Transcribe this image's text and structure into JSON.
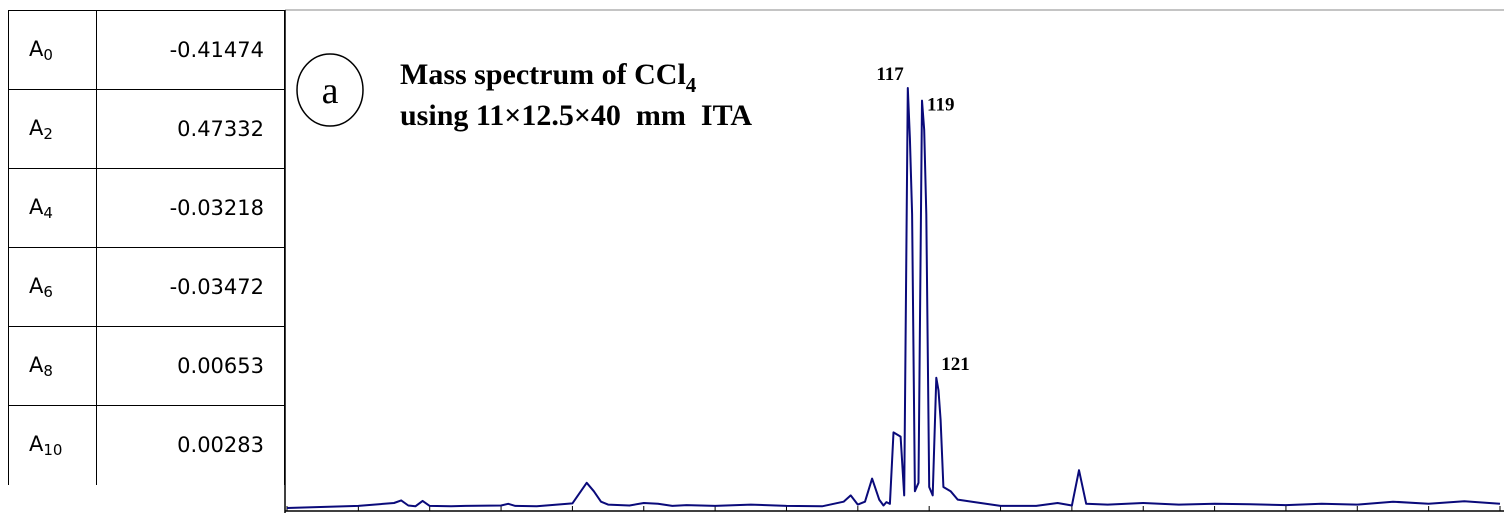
{
  "coefficients": [
    {
      "name": "A",
      "sub": "0",
      "value": "-0.41474"
    },
    {
      "name": "A",
      "sub": "2",
      "value": "0.47332"
    },
    {
      "name": "A",
      "sub": "4",
      "value": "-0.03218"
    },
    {
      "name": "A",
      "sub": "6",
      "value": "-0.03472"
    },
    {
      "name": "A",
      "sub": "8",
      "value": "0.00653"
    },
    {
      "name": "A",
      "sub": "10",
      "value": "0.00283"
    }
  ],
  "chart_data": {
    "type": "line",
    "panel_label": "a",
    "title_line1": "Mass spectrum of CCl",
    "title_line1_sub": "4",
    "title_line2": "using 11×12.5×40  mm  ITA",
    "xlabel": "",
    "ylabel": "",
    "xlim": [
      30,
      200
    ],
    "ylim": [
      0,
      100
    ],
    "grid": false,
    "line_color": "#0a0a7a",
    "peak_labels": [
      {
        "text": "117",
        "x": 117,
        "y": 100
      },
      {
        "text": "119",
        "x": 119,
        "y": 97
      },
      {
        "text": "121",
        "x": 121,
        "y": 31
      }
    ],
    "series": [
      {
        "x": [
          30,
          40,
          45,
          46,
          47,
          48,
          49,
          50,
          53,
          55,
          60,
          61,
          62,
          65,
          70,
          72,
          73,
          74,
          75,
          78,
          80,
          82,
          84,
          86,
          90,
          95,
          100,
          105,
          108,
          109,
          110,
          111,
          112,
          113,
          113.6,
          114,
          114.5,
          115,
          116,
          116.5,
          117,
          117.3,
          117.6,
          118,
          118.5,
          119,
          119.3,
          119.6,
          120,
          120.5,
          121,
          121.3,
          121.6,
          122,
          123,
          124,
          126,
          130,
          135,
          138,
          140,
          141,
          142,
          145,
          150,
          155,
          160,
          165,
          170,
          175,
          180,
          185,
          190,
          195,
          200
        ],
        "y": [
          0,
          0.5,
          1.2,
          1.8,
          0.6,
          0.4,
          1.7,
          0.5,
          0.4,
          0.5,
          0.6,
          1,
          0.5,
          0.4,
          1.1,
          6,
          4,
          1.5,
          0.8,
          0.6,
          1.2,
          1,
          0.5,
          0.7,
          0.5,
          0.8,
          0.5,
          0.4,
          1.5,
          3,
          0.8,
          1.5,
          7,
          2,
          0.6,
          1.4,
          1,
          18,
          17,
          3,
          100,
          88,
          70,
          4,
          6,
          97,
          90,
          70,
          5,
          3,
          31,
          28,
          21,
          5,
          4,
          2,
          1.5,
          0.5,
          0.5,
          1.2,
          0.6,
          9,
          1,
          0.8,
          1.2,
          0.8,
          1,
          0.9,
          0.7,
          1,
          0.8,
          1.5,
          1,
          1.6,
          1
        ]
      }
    ]
  }
}
